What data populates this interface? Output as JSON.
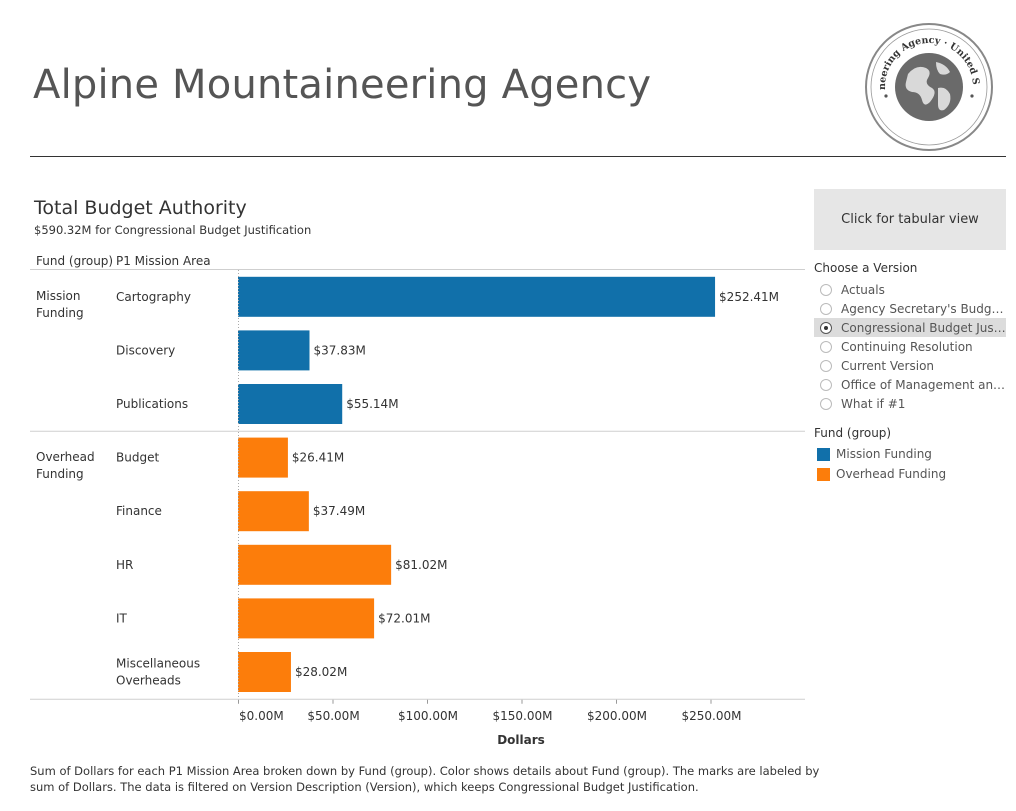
{
  "header": {
    "title": "Alpine Mountaineering Agency",
    "seal_text": "Alpine Mountaineering Agency · United States of America"
  },
  "chart": {
    "title": "Total Budget Authority",
    "subtitle": "$590.32M for Congressional Budget Justification",
    "col_header_group": "Fund (group)",
    "col_header_area": "P1 Mission Area"
  },
  "chart_data": {
    "type": "bar",
    "orientation": "horizontal",
    "title": "Total Budget Authority",
    "subtitle": "$590.32M for Congressional Budget Justification",
    "xlabel": "Dollars",
    "ylabel": "",
    "xlim": [
      0,
      300
    ],
    "x_ticks": [
      0,
      50,
      100,
      150,
      200,
      250
    ],
    "x_tick_labels": [
      "$0.00M",
      "$50.00M",
      "$100.00M",
      "$150.00M",
      "$200.00M",
      "$250.00M"
    ],
    "value_unit": "$M",
    "groups": [
      {
        "name_lines": [
          "Mission",
          "Funding"
        ],
        "color": "#1170aa",
        "bars": [
          {
            "category_lines": [
              "Cartography"
            ],
            "value": 252.41,
            "label": "$252.41M"
          },
          {
            "category_lines": [
              "Discovery"
            ],
            "value": 37.83,
            "label": "$37.83M"
          },
          {
            "category_lines": [
              "Publications"
            ],
            "value": 55.14,
            "label": "$55.14M"
          }
        ]
      },
      {
        "name_lines": [
          "Overhead",
          "Funding"
        ],
        "color": "#fc7d0b",
        "bars": [
          {
            "category_lines": [
              "Budget"
            ],
            "value": 26.41,
            "label": "$26.41M"
          },
          {
            "category_lines": [
              "Finance"
            ],
            "value": 37.49,
            "label": "$37.49M"
          },
          {
            "category_lines": [
              "HR"
            ],
            "value": 81.02,
            "label": "$81.02M"
          },
          {
            "category_lines": [
              "IT"
            ],
            "value": 72.01,
            "label": "$72.01M"
          },
          {
            "category_lines": [
              "Miscellaneous",
              "Overheads"
            ],
            "value": 28.02,
            "label": "$28.02M"
          }
        ]
      }
    ],
    "grid": false,
    "legend_placement": "right"
  },
  "sidebar": {
    "tabular_button_label": "Click for tabular view",
    "version_filter": {
      "title": "Choose a Version",
      "options": [
        {
          "label": "Actuals",
          "selected": false
        },
        {
          "label": "Agency Secretary's Budget...",
          "selected": false
        },
        {
          "label": "Congressional Budget Just...",
          "selected": true
        },
        {
          "label": "Continuing Resolution",
          "selected": false
        },
        {
          "label": "Current Version",
          "selected": false
        },
        {
          "label": "Office of Management and ...",
          "selected": false
        },
        {
          "label": "What if #1",
          "selected": false
        }
      ]
    },
    "legend": {
      "title": "Fund (group)",
      "items": [
        {
          "label": "Mission Funding",
          "color": "#1170aa"
        },
        {
          "label": "Overhead Funding",
          "color": "#fc7d0b"
        }
      ]
    }
  },
  "caption": "Sum of Dollars for each P1 Mission Area broken down by Fund (group).  Color shows details about Fund (group).  The marks are labeled by sum of Dollars. The data is filtered on Version Description (Version), which keeps Congressional Budget Justification."
}
